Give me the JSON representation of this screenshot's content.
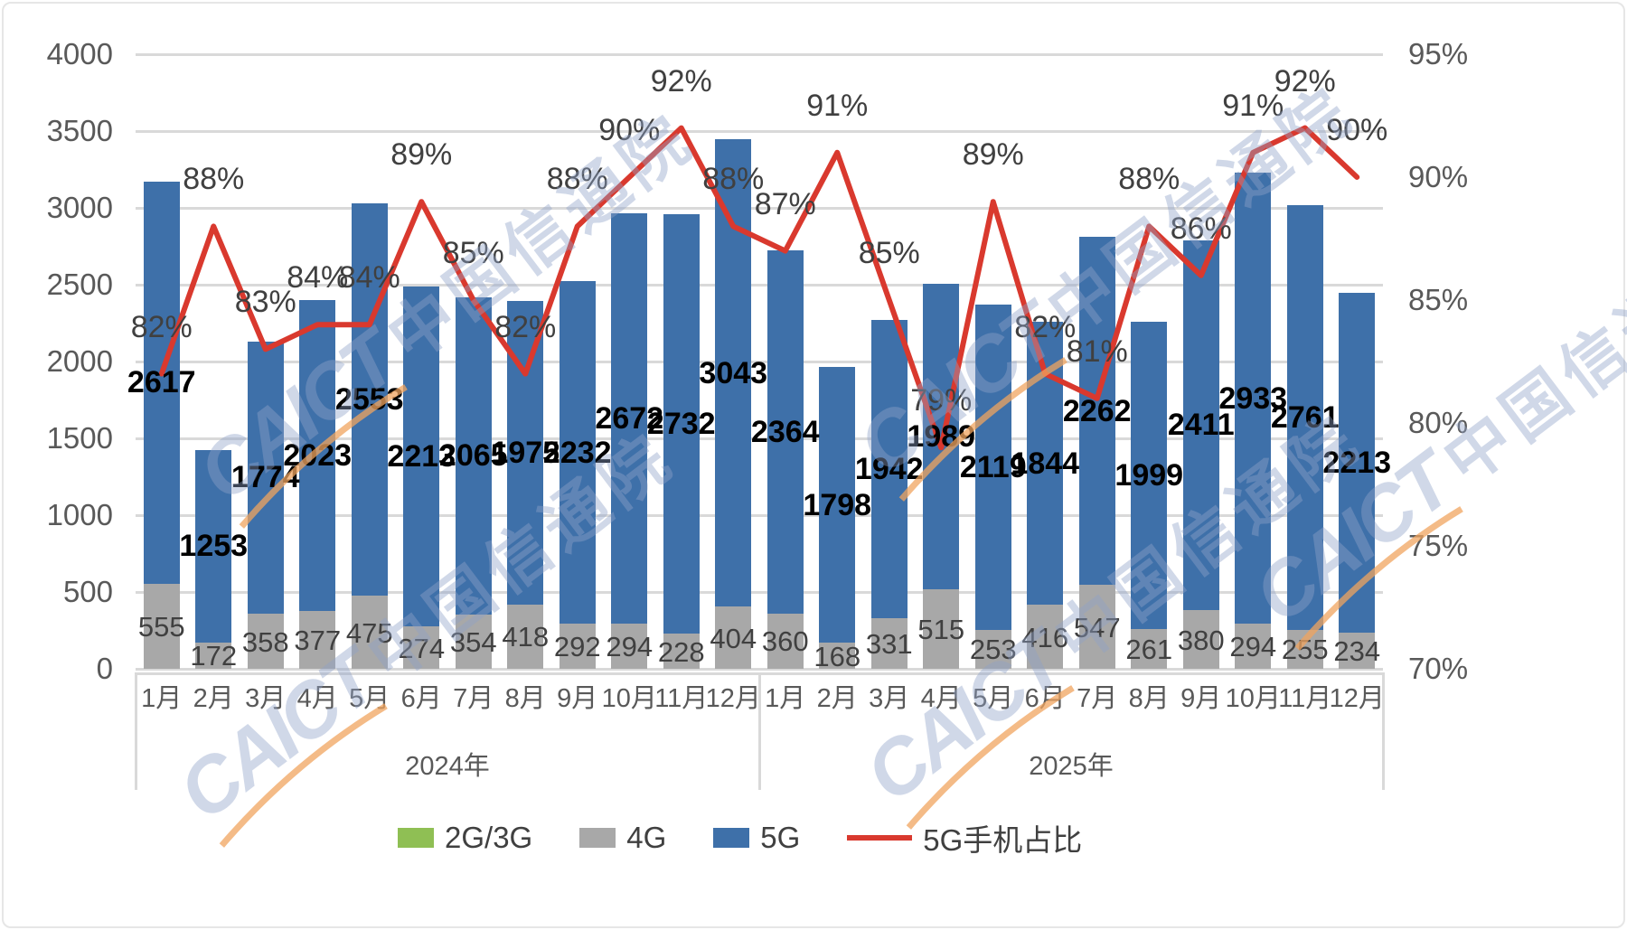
{
  "chart_data": {
    "type": "bar+line combo (stacked bars, secondary-axis line)",
    "title": "",
    "categories": [
      "1月",
      "2月",
      "3月",
      "4月",
      "5月",
      "6月",
      "7月",
      "8月",
      "9月",
      "10月",
      "11月",
      "12月",
      "1月",
      "2月",
      "3月",
      "4月",
      "5月",
      "6月",
      "7月",
      "8月",
      "9月",
      "10月",
      "11月",
      "12月"
    ],
    "year_groups": [
      {
        "label": "2024年",
        "span": [
          0,
          11
        ]
      },
      {
        "label": "2025年",
        "span": [
          12,
          23
        ]
      }
    ],
    "series": [
      {
        "name": "2G/3G",
        "color": "#8FBF54",
        "values": [
          0,
          0,
          0,
          0,
          0,
          0,
          0,
          0,
          0,
          0,
          0,
          0,
          0,
          0,
          0,
          0,
          0,
          0,
          0,
          0,
          0,
          0,
          0,
          0
        ]
      },
      {
        "name": "4G",
        "color": "#A8A8A8",
        "values": [
          555,
          172,
          358,
          377,
          475,
          274,
          354,
          418,
          292,
          294,
          228,
          404,
          360,
          168,
          331,
          515,
          253,
          416,
          547,
          261,
          380,
          294,
          255,
          234
        ]
      },
      {
        "name": "5G",
        "color": "#3E70A9",
        "values": [
          2617,
          1253,
          1774,
          2023,
          2553,
          2213,
          2065,
          1975,
          2232,
          2672,
          2732,
          3043,
          2364,
          1798,
          1942,
          1989,
          2119,
          1844,
          2262,
          1999,
          2411,
          2933,
          2761,
          2213
        ]
      }
    ],
    "line_series": {
      "name": "5G手机占比",
      "color": "#D9392E",
      "values_pct": [
        82,
        88,
        83,
        84,
        84,
        89,
        85,
        82,
        88,
        90,
        92,
        88,
        87,
        91,
        85,
        79,
        89,
        82,
        81,
        88,
        86,
        91,
        92,
        90
      ],
      "labels": [
        "82%",
        "88%",
        "83%",
        "84%",
        "84%",
        "89%",
        "85%",
        "82%",
        "88%",
        "90%",
        "92%",
        "88%",
        "87%",
        "91%",
        "85%",
        "79%",
        "89%",
        "82%",
        "81%",
        "88%",
        "86%",
        "91%",
        "92%",
        "90%"
      ]
    },
    "left_axis": {
      "ticks": [
        "0",
        "500",
        "1000",
        "1500",
        "2000",
        "2500",
        "3000",
        "3500",
        "4000"
      ],
      "min": 0,
      "max": 4000,
      "grid": true
    },
    "right_axis": {
      "ticks": [
        "70%",
        "75%",
        "80%",
        "85%",
        "90%",
        "95%"
      ],
      "min": 70,
      "max": 95
    },
    "legend_items": [
      {
        "label": "2G/3G",
        "color": "#8FBF54",
        "type": "swatch"
      },
      {
        "label": "4G",
        "color": "#A8A8A8",
        "type": "swatch"
      },
      {
        "label": "5G",
        "color": "#3E70A9",
        "type": "swatch"
      },
      {
        "label": "5G手机占比",
        "color": "#D9392E",
        "type": "line"
      }
    ],
    "legend_position": "bottom",
    "watermark": {
      "brand": "CAICT",
      "cjk": "中国信通院"
    }
  }
}
